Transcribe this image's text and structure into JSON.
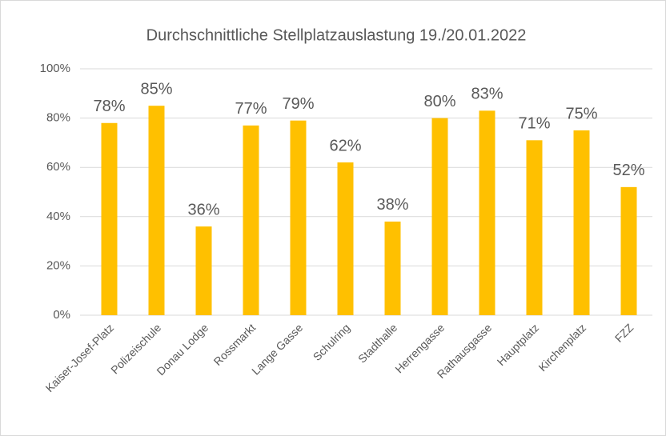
{
  "chart_data": {
    "type": "bar",
    "title": "Durchschnittliche Stellplatzauslastung 19./20.01.2022",
    "categories": [
      "Kaiser-Josef-Platz",
      "Polizeischule",
      "Donau Lodge",
      "Rossmarkt",
      "Lange Gasse",
      "Schulring",
      "Stadthalle",
      "Herrengasse",
      "Rathausgasse",
      "Hauptplatz",
      "Kirchenplatz",
      "FZZ"
    ],
    "values": [
      78,
      85,
      36,
      77,
      79,
      62,
      38,
      80,
      83,
      71,
      75,
      52
    ],
    "value_labels": [
      "78%",
      "85%",
      "36%",
      "77%",
      "79%",
      "62%",
      "38%",
      "80%",
      "83%",
      "71%",
      "75%",
      "52%"
    ],
    "color": "#ffc000",
    "ylim": [
      0,
      100
    ],
    "yticks": [
      {
        "value": 0,
        "label": "0%"
      },
      {
        "value": 20,
        "label": "20%"
      },
      {
        "value": 40,
        "label": "40%"
      },
      {
        "value": 60,
        "label": "60%"
      },
      {
        "value": 80,
        "label": "80%"
      },
      {
        "value": 100,
        "label": "100%"
      }
    ],
    "grid": true
  }
}
